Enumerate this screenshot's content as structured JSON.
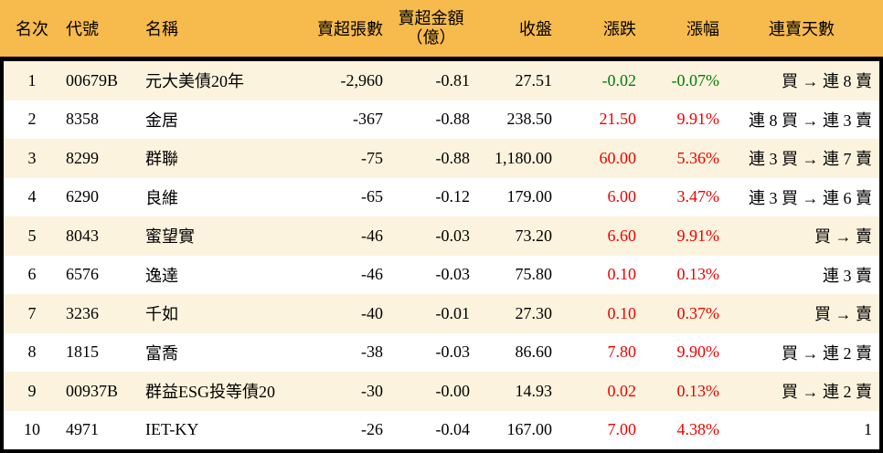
{
  "colors": {
    "header_bg": "#F6BA4D",
    "row_alt_bg": "#FBF3DD",
    "border": "#000000",
    "up_red": "#EE0000",
    "down_green": "#007E00"
  },
  "chart_data": {
    "type": "table",
    "columns": [
      {
        "key": "rank",
        "label": "名次"
      },
      {
        "key": "code",
        "label": "代號"
      },
      {
        "key": "name",
        "label": "名稱"
      },
      {
        "key": "sell_volume",
        "label": "賣超張數"
      },
      {
        "key": "sell_amount",
        "label": "賣超金額",
        "label2": "（億）"
      },
      {
        "key": "close",
        "label": "收盤"
      },
      {
        "key": "change",
        "label": "漲跌"
      },
      {
        "key": "change_pct",
        "label": "漲幅"
      },
      {
        "key": "streak",
        "label": "連賣天數"
      }
    ],
    "rows": [
      {
        "rank": "1",
        "code": "00679B",
        "name": "元大美債20年",
        "sell_volume": "-2,960",
        "sell_amount": "-0.81",
        "close": "27.51",
        "change": "-0.02",
        "change_pct": "-0.07%",
        "streak": "買 → 連 8 賣"
      },
      {
        "rank": "2",
        "code": "8358",
        "name": "金居",
        "sell_volume": "-367",
        "sell_amount": "-0.88",
        "close": "238.50",
        "change": "21.50",
        "change_pct": "9.91%",
        "streak": "連 8 買 → 連 3 賣"
      },
      {
        "rank": "3",
        "code": "8299",
        "name": "群聯",
        "sell_volume": "-75",
        "sell_amount": "-0.88",
        "close": "1,180.00",
        "change": "60.00",
        "change_pct": "5.36%",
        "streak": "連 3 買 → 連 7 賣"
      },
      {
        "rank": "4",
        "code": "6290",
        "name": "良維",
        "sell_volume": "-65",
        "sell_amount": "-0.12",
        "close": "179.00",
        "change": "6.00",
        "change_pct": "3.47%",
        "streak": "連 3 買 → 連 6 賣"
      },
      {
        "rank": "5",
        "code": "8043",
        "name": "蜜望實",
        "sell_volume": "-46",
        "sell_amount": "-0.03",
        "close": "73.20",
        "change": "6.60",
        "change_pct": "9.91%",
        "streak": "買 → 賣"
      },
      {
        "rank": "6",
        "code": "6576",
        "name": "逸達",
        "sell_volume": "-46",
        "sell_amount": "-0.03",
        "close": "75.80",
        "change": "0.10",
        "change_pct": "0.13%",
        "streak": "連 3 賣"
      },
      {
        "rank": "7",
        "code": "3236",
        "name": "千如",
        "sell_volume": "-40",
        "sell_amount": "-0.01",
        "close": "27.30",
        "change": "0.10",
        "change_pct": "0.37%",
        "streak": "買 → 賣"
      },
      {
        "rank": "8",
        "code": "1815",
        "name": "富喬",
        "sell_volume": "-38",
        "sell_amount": "-0.03",
        "close": "86.60",
        "change": "7.80",
        "change_pct": "9.90%",
        "streak": "買 → 連 2 賣"
      },
      {
        "rank": "9",
        "code": "00937B",
        "name": "群益ESG投等債20",
        "sell_volume": "-30",
        "sell_amount": "-0.00",
        "close": "14.93",
        "change": "0.02",
        "change_pct": "0.13%",
        "streak": "買 → 連 2 賣"
      },
      {
        "rank": "10",
        "code": "4971",
        "name": "IET-KY",
        "sell_volume": "-26",
        "sell_amount": "-0.04",
        "close": "167.00",
        "change": "7.00",
        "change_pct": "4.38%",
        "streak": "1"
      }
    ]
  }
}
